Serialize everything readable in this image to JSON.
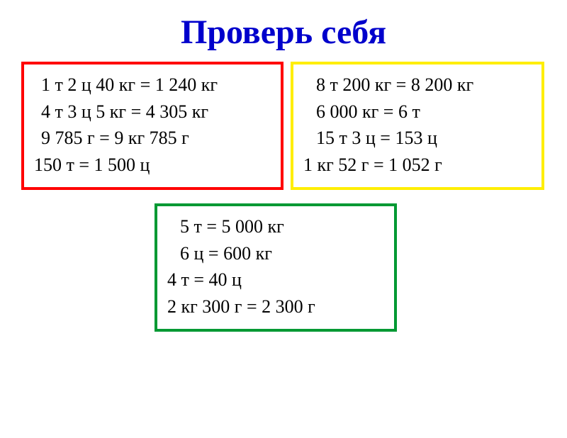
{
  "title": {
    "text": "Проверь себя",
    "color": "#0000cc",
    "fontsize": 48
  },
  "boxes": {
    "left": {
      "border_color": "#ff0000",
      "rows": [
        {
          "indent": 10,
          "text": "1 т 2 ц 40 кг = 1 240 кг"
        },
        {
          "indent": 10,
          "text": "4 т 3 ц 5 кг = 4 305 кг"
        },
        {
          "indent": 10,
          "text": "9 785 г = 9 кг 785 г"
        },
        {
          "indent": 0,
          "text": "150 т = 1 500 ц"
        }
      ]
    },
    "right": {
      "border_color": "#ffee00",
      "rows": [
        {
          "indent": 18,
          "text": "8 т 200 кг = 8 200 кг"
        },
        {
          "indent": 18,
          "text": "6 000 кг = 6 т"
        },
        {
          "indent": 18,
          "text": "15 т 3 ц = 153 ц"
        },
        {
          "indent": 0,
          "text": "1 кг 52 г = 1 052 г"
        }
      ]
    },
    "bottom": {
      "border_color": "#009933",
      "rows": [
        {
          "indent": 18,
          "text": "5 т = 5 000 кг"
        },
        {
          "indent": 18,
          "text": "6 ц = 600 кг"
        },
        {
          "indent": 0,
          "text": "4 т = 40 ц"
        },
        {
          "indent": 0,
          "text": "2 кг 300 г = 2 300 г"
        }
      ]
    }
  },
  "style": {
    "background_color": "#ffffff",
    "row_fontsize": 26,
    "row_color": "#000000",
    "border_width": 4
  }
}
